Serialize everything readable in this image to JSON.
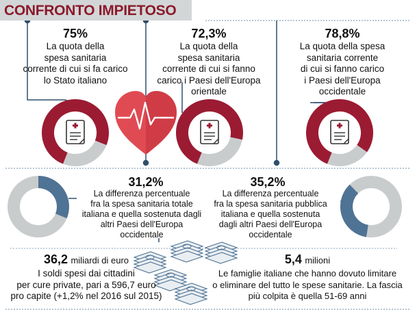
{
  "header": {
    "title": "CONFRONTO IMPIETOSO"
  },
  "colors": {
    "accent": "#9b1b32",
    "gray": "#c9cccd",
    "blue": "#4f7394",
    "heart": "#d8404a",
    "line": "#2f4f6b"
  },
  "top_stats": [
    {
      "value": "75%",
      "lines": [
        "La quota della",
        "spesa sanitaria",
        "corrente di cui si fa carico",
        "lo Stato italiano"
      ],
      "share": 0.75
    },
    {
      "value": "72,3%",
      "lines": [
        "La quota della",
        "spesa sanitaria",
        "corrente di cui si fanno",
        "carico i Paesi dell'Europa",
        "orientale"
      ],
      "share": 0.723
    },
    {
      "value": "78,8%",
      "lines": [
        "La quota della spesa",
        "sanitaria corrente",
        "di cui si fanno carico",
        "i Paesi dell'Europa",
        "occidentale"
      ],
      "share": 0.788
    }
  ],
  "mid_stats": [
    {
      "value": "31,2%",
      "lines": [
        "La differenza percentuale",
        "fra la spesa sanitaria totale",
        "italiana e quella sostenuta dagli",
        "altri Paesi dell'Europa",
        "occidentale"
      ],
      "share": 0.312
    },
    {
      "value": "35,2%",
      "lines": [
        "La differenza percentuale",
        "fra la spesa sanitaria pubblica",
        "italiana e quella sostenuta",
        "dagli altri Paesi dell'Europa",
        "occidentale"
      ],
      "share": 0.352
    }
  ],
  "bottom_left": {
    "number": "36,2",
    "unit": "miliardi di euro",
    "lines": [
      "I soldi spesi dai cittadini",
      "per cure private, pari a 596,7 euro",
      "pro capite (+1,2% nel 2016 sul 2015)"
    ]
  },
  "bottom_right": {
    "number": "5,4",
    "unit": "milioni",
    "lines": [
      "Le famiglie italiane che hanno dovuto limitare",
      "o eliminare del tutto le spese sanitarie. La fascia",
      "più colpita è quella 51-69 anni"
    ]
  },
  "icons": [
    "medical-document-icon",
    "heart-pulse-icon",
    "money-stack-icon"
  ]
}
